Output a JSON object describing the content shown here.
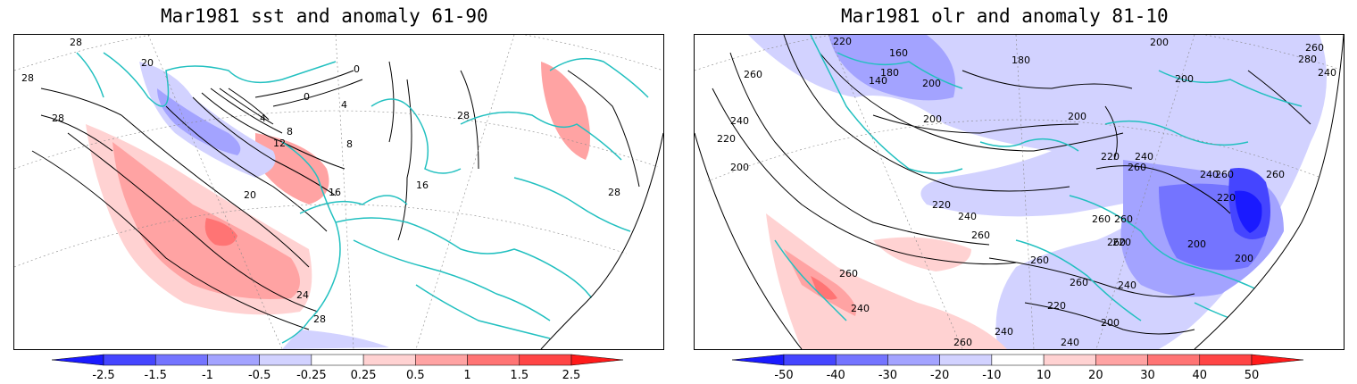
{
  "panels": [
    {
      "title": "Mar1981 sst and anomaly 61-90",
      "colorbar": {
        "labels": [
          "-2.5",
          "-1.5",
          "-1",
          "-0.5",
          "-0.25",
          "0.25",
          "0.5",
          "1",
          "1.5",
          "2.5"
        ],
        "colors": [
          "#1a1aff",
          "#4545ff",
          "#7474ff",
          "#a3a3ff",
          "#d2d2ff",
          "#ffffff",
          "#ffd2d2",
          "#ffa3a3",
          "#ff7474",
          "#ff4545",
          "#ff1a1a"
        ]
      },
      "contour_labels": [
        "28",
        "28",
        "28",
        "28",
        "20",
        "0",
        "0",
        "4",
        "4",
        "8",
        "8",
        "12",
        "16",
        "16",
        "20",
        "24",
        "28",
        "28"
      ]
    },
    {
      "title": "Mar1981 olr and anomaly 81-10",
      "colorbar": {
        "labels": [
          "-50",
          "-40",
          "-30",
          "-20",
          "-10",
          "10",
          "20",
          "30",
          "40",
          "50"
        ],
        "colors": [
          "#1a1aff",
          "#4545ff",
          "#7474ff",
          "#a3a3ff",
          "#d2d2ff",
          "#ffffff",
          "#ffd2d2",
          "#ffa3a3",
          "#ff7474",
          "#ff4545",
          "#ff1a1a"
        ]
      },
      "contour_labels": [
        "220",
        "260",
        "240",
        "220",
        "200",
        "160",
        "180",
        "140",
        "200",
        "180",
        "200",
        "260",
        "280",
        "240",
        "200",
        "200",
        "200",
        "220",
        "240",
        "260",
        "260",
        "220",
        "240",
        "260",
        "260",
        "220",
        "260",
        "240",
        "260",
        "260",
        "260",
        "220",
        "260",
        "200",
        "260",
        "240",
        "200",
        "240",
        "220",
        "200",
        "240",
        "260",
        "240"
      ]
    }
  ],
  "colors": {
    "neg_strong": "#3333ff",
    "neg_light": "#d2d2ff",
    "pos_light": "#ffd2d2",
    "pos_strong": "#ff3333",
    "coastline": "#22c0c0",
    "contour": "#000000",
    "frame": "#000000"
  }
}
